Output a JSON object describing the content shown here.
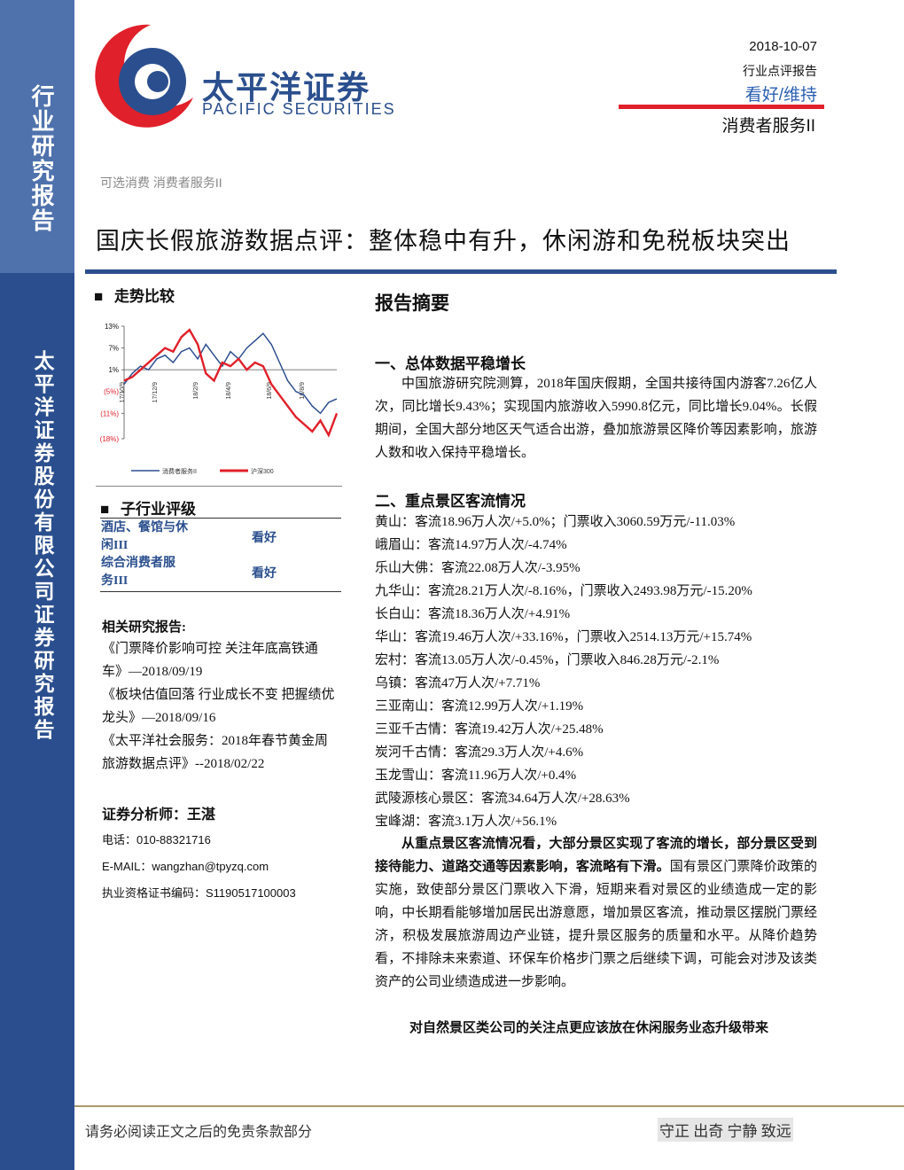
{
  "sidebar": {
    "top": "行业研究报告",
    "bottom": "太平洋证券股份有限公司证券研究报告"
  },
  "header": {
    "company_cn": "太平洋证券",
    "company_en": "PACIFIC SECURITIES",
    "date": "2018-10-07",
    "report_type": "行业点评报告",
    "rating": "看好/维持",
    "sector": "消费者服务II"
  },
  "breadcrumb": "可选消费 消费者服务II",
  "title": "国庆长假旅游数据点评：整体稳中有升，休闲游和免税板块突出",
  "trend_heading": "走势比较",
  "chart_data": {
    "type": "line",
    "categories": [
      "17/10/9",
      null,
      null,
      null,
      "17/12/9",
      null,
      null,
      null,
      null,
      "18/2/9",
      null,
      null,
      null,
      "18/4/9",
      null,
      null,
      null,
      null,
      "18/6/9",
      null,
      null,
      null,
      "18/8/9",
      null,
      null,
      null,
      null
    ],
    "series": [
      {
        "name": "消费者服务II",
        "color": "#2e4f8f",
        "values": [
          -3,
          0,
          2,
          1,
          4,
          5,
          3,
          6,
          7,
          4,
          8,
          5,
          2,
          6,
          4,
          7,
          9,
          11,
          8,
          3,
          -2,
          -5,
          -6,
          -9,
          -11,
          -8,
          -7
        ]
      },
      {
        "name": "沪深300",
        "color": "#e0202a",
        "values": [
          -2,
          -1,
          1,
          3,
          5,
          7,
          6,
          10,
          12,
          8,
          0,
          -2,
          3,
          2,
          4,
          1,
          3,
          2,
          -3,
          -6,
          -9,
          -12,
          -14,
          -16,
          -13,
          -17,
          -11
        ]
      }
    ],
    "ylim": [
      -18,
      13
    ],
    "yticks": [
      {
        "value": 13,
        "label": "13%"
      },
      {
        "value": 7,
        "label": "7%"
      },
      {
        "value": 1,
        "label": "1%"
      },
      {
        "value": -5,
        "label": "(5%)"
      },
      {
        "value": -11,
        "label": "(11%)"
      },
      {
        "value": -18,
        "label": "(18%)"
      }
    ]
  },
  "sub_industry": {
    "heading": "子行业评级",
    "rows": [
      [
        "酒店、餐馆与休闲III",
        "看好"
      ],
      [
        "综合消费者服务III",
        "看好"
      ]
    ]
  },
  "related": {
    "heading": "相关研究报告:",
    "items": [
      "《门票降价影响可控 关注年底高铁通车》—2018/09/19",
      "《板块估值回落 行业成长不变 把握绩优龙头》—2018/09/16",
      "《太平洋社会服务：2018年春节黄金周旅游数据点评》--2018/02/22"
    ]
  },
  "analyst": {
    "heading": "证券分析师：王湛",
    "phone": "电话：010-88321716",
    "email": "E-MAIL：wangzhan@tpyzq.com",
    "license": "执业资格证书编码：S1190517100003"
  },
  "summary": {
    "heading": "报告摘要",
    "section1": {
      "heading": "一、总体数据平稳增长",
      "paragraph": "中国旅游研究院测算，2018年国庆假期，全国共接待国内游客7.26亿人次，同比增长9.43%；实现国内旅游收入5990.8亿元，同比增长9.04%。长假期间，全国大部分地区天气适合出游，叠加旅游景区降价等因素影响，旅游人数和收入保持平稳增长。"
    },
    "section2": {
      "heading": "二、重点景区客流情况",
      "items": [
        "黄山：客流18.96万人次/+5.0%；门票收入3060.59万元/-11.03%",
        "峨眉山：客流14.97万人次/-4.74%",
        "乐山大佛：客流22.08万人次/-3.95%",
        "九华山：客流28.21万人次/-8.16%，门票收入2493.98万元/-15.20%",
        "长白山：客流18.36万人次/+4.91%",
        "华山：客流19.46万人次/+33.16%，门票收入2514.13万元/+15.74%",
        "宏村：客流13.05万人次/-0.45%，门票收入846.28万元/-2.1%",
        "乌镇：客流47万人次/+7.71%",
        "三亚南山：客流12.99万人次/+1.19%",
        "三亚千古情：客流19.42万人次/+25.48%",
        "炭河千古情：客流29.3万人次/+4.6%",
        "玉龙雪山：客流11.96万人次/+0.4%",
        "武陵源核心景区：客流34.64万人次/+28.63%",
        "宝峰湖：客流3.1万人次/+56.1%"
      ],
      "bold": "从重点景区客流情况看，大部分景区实现了客流的增长，部分景区受到接待能力、道路交通等因素影响，客流略有下滑。",
      "rest": "国有景区门票降价政策的实施，致使部分景区门票收入下滑，短期来看对景区的业绩造成一定的影响，中长期看能够增加居民出游意愿，增加景区客流，推动景区摆脱门票经济，积极发展旅游周边产业链，提升景区服务的质量和水平。从降价趋势看，不排除未来索道、环保车价格步门票之后继续下调，可能会对涉及该类资产的公司业绩造成进一步影响。",
      "last": "对自然景区类公司的关注点更应该放在休闲服务业态升级带来"
    }
  },
  "footer": {
    "disclaimer": "请务必阅读正文之后的免责条款部分",
    "motto": "守正 出奇 宁静 致远"
  }
}
